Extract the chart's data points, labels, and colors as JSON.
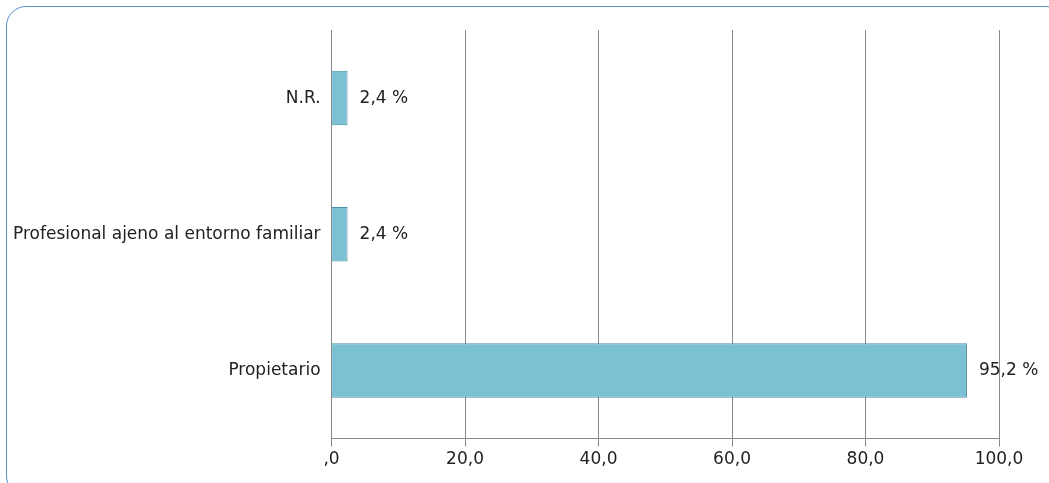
{
  "chart_data": {
    "type": "bar",
    "orientation": "horizontal",
    "categories": [
      "N.R.",
      "Profesional ajeno al entorno familiar",
      "Propietario"
    ],
    "values": [
      2.4,
      2.4,
      95.2
    ],
    "value_labels": [
      "2,4 %",
      "2,4 %",
      "95,2 %"
    ],
    "color": "#7cc0d4",
    "xlim": [
      0,
      100
    ],
    "xticks": [
      {
        "value": 0,
        "label": ",0"
      },
      {
        "value": 20,
        "label": "20,0"
      },
      {
        "value": 40,
        "label": "40,0"
      },
      {
        "value": 60,
        "label": "60,0"
      },
      {
        "value": 80,
        "label": "80,0"
      },
      {
        "value": 100,
        "label": "100,0"
      }
    ],
    "grid": "x"
  }
}
